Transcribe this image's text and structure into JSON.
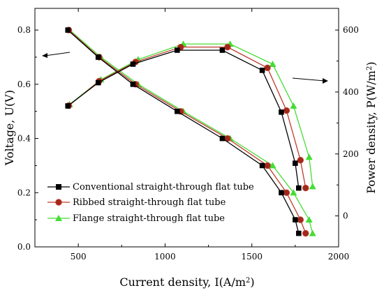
{
  "chart_data": {
    "type": "line",
    "xlabel_main": "Current density, I(A/m",
    "xlabel_sup": "2",
    "xlabel_end": ")",
    "ylabel_left": "Voltage, U(V)",
    "ylabel_right_main": "Power density, P(W/m",
    "ylabel_right_sup": "2",
    "ylabel_right_end": ")",
    "xlim": [
      250,
      2000
    ],
    "ylim_left": [
      0.0,
      0.88
    ],
    "ylim_right": [
      -100,
      670
    ],
    "x_ticks": [
      500,
      1000,
      1500,
      2000
    ],
    "y_left_ticks": [
      0.0,
      0.2,
      0.4,
      0.6,
      0.8
    ],
    "y_right_ticks": [
      0,
      200,
      400,
      600
    ],
    "legend_position": "lower-left",
    "series": [
      {
        "name": "Conventional straight-through flat tube",
        "color": "#000000",
        "marker": "square",
        "voltage": {
          "x": [
            440,
            615,
            815,
            1070,
            1330,
            1560,
            1670,
            1750,
            1770
          ],
          "y": [
            0.8,
            0.7,
            0.6,
            0.5,
            0.4,
            0.3,
            0.2,
            0.1,
            0.05
          ]
        },
        "power": {
          "x": [
            440,
            615,
            815,
            1070,
            1330,
            1560,
            1670,
            1750,
            1770
          ],
          "y": [
            355,
            430,
            490,
            535,
            535,
            470,
            335,
            170,
            90
          ]
        }
      },
      {
        "name": "Ribbed straight-through flat tube",
        "color": "#c0392b",
        "marker": "circle",
        "voltage": {
          "x": [
            445,
            620,
            830,
            1090,
            1360,
            1590,
            1700,
            1780,
            1810
          ],
          "y": [
            0.8,
            0.7,
            0.6,
            0.5,
            0.4,
            0.3,
            0.2,
            0.1,
            0.05
          ]
        },
        "power": {
          "x": [
            445,
            620,
            830,
            1090,
            1360,
            1590,
            1700,
            1780,
            1810
          ],
          "y": [
            356,
            435,
            497,
            545,
            545,
            478,
            340,
            180,
            90
          ]
        }
      },
      {
        "name": "Flange straight-through flat tube",
        "color": "#44dd33",
        "marker": "triangle",
        "voltage": {
          "x": [
            450,
            630,
            845,
            1105,
            1375,
            1620,
            1740,
            1830,
            1850
          ],
          "y": [
            0.8,
            0.7,
            0.6,
            0.5,
            0.4,
            0.3,
            0.2,
            0.1,
            0.05
          ]
        },
        "power": {
          "x": [
            450,
            630,
            845,
            1105,
            1375,
            1620,
            1740,
            1830,
            1850
          ],
          "y": [
            360,
            440,
            505,
            555,
            555,
            490,
            355,
            190,
            95
          ]
        }
      }
    ]
  }
}
